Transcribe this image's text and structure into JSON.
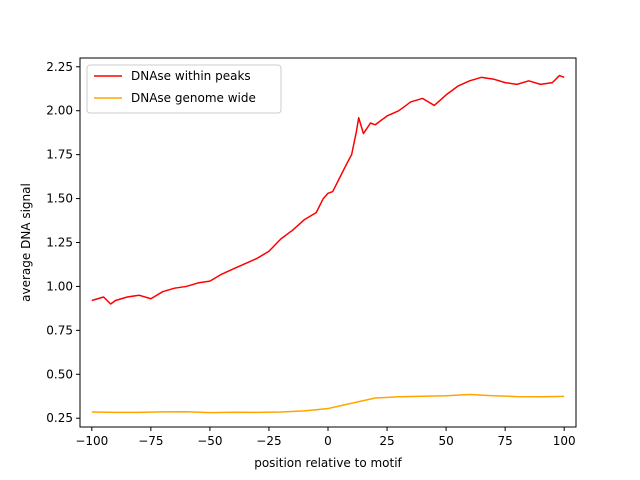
{
  "chart_data": {
    "type": "line",
    "xlabel": "position relative to motif",
    "ylabel": "average DNA signal",
    "xlim": [
      -105,
      105
    ],
    "ylim": [
      0.2,
      2.3
    ],
    "xticks": [
      -100,
      -75,
      -50,
      -25,
      0,
      25,
      50,
      75,
      100
    ],
    "xtick_labels": [
      "−100",
      "−75",
      "−50",
      "−25",
      "0",
      "25",
      "50",
      "75",
      "100"
    ],
    "yticks": [
      0.25,
      0.5,
      0.75,
      1.0,
      1.25,
      1.5,
      1.75,
      2.0,
      2.25
    ],
    "ytick_labels": [
      "0.25",
      "0.50",
      "0.75",
      "1.00",
      "1.25",
      "1.50",
      "1.75",
      "2.00",
      "2.25"
    ],
    "grid": false,
    "legend_position": "top-left",
    "series": [
      {
        "name": "DNAse within peaks",
        "color": "#ff0000",
        "x": [
          -100,
          -95,
          -92,
          -90,
          -85,
          -80,
          -75,
          -70,
          -65,
          -60,
          -55,
          -50,
          -45,
          -40,
          -35,
          -30,
          -25,
          -20,
          -15,
          -10,
          -5,
          -2,
          0,
          2,
          5,
          8,
          10,
          12,
          13,
          15,
          18,
          20,
          25,
          30,
          35,
          40,
          45,
          50,
          55,
          60,
          65,
          70,
          75,
          80,
          85,
          90,
          95,
          98,
          100
        ],
        "y": [
          0.92,
          0.94,
          0.9,
          0.92,
          0.94,
          0.95,
          0.93,
          0.97,
          0.99,
          1.0,
          1.02,
          1.03,
          1.07,
          1.1,
          1.13,
          1.16,
          1.2,
          1.27,
          1.32,
          1.38,
          1.42,
          1.5,
          1.53,
          1.54,
          1.62,
          1.7,
          1.75,
          1.88,
          1.96,
          1.87,
          1.93,
          1.92,
          1.97,
          2.0,
          2.05,
          2.07,
          2.03,
          2.09,
          2.14,
          2.17,
          2.19,
          2.18,
          2.16,
          2.15,
          2.17,
          2.15,
          2.16,
          2.2,
          2.19
        ]
      },
      {
        "name": "DNAse genome wide",
        "color": "#ffa500",
        "x": [
          -100,
          -90,
          -80,
          -70,
          -60,
          -50,
          -40,
          -30,
          -20,
          -10,
          -5,
          0,
          5,
          10,
          15,
          20,
          30,
          40,
          50,
          60,
          70,
          80,
          90,
          100
        ],
        "y": [
          0.285,
          0.283,
          0.283,
          0.286,
          0.287,
          0.282,
          0.284,
          0.283,
          0.285,
          0.292,
          0.298,
          0.305,
          0.32,
          0.335,
          0.35,
          0.365,
          0.372,
          0.375,
          0.378,
          0.385,
          0.378,
          0.373,
          0.372,
          0.374
        ]
      }
    ]
  }
}
